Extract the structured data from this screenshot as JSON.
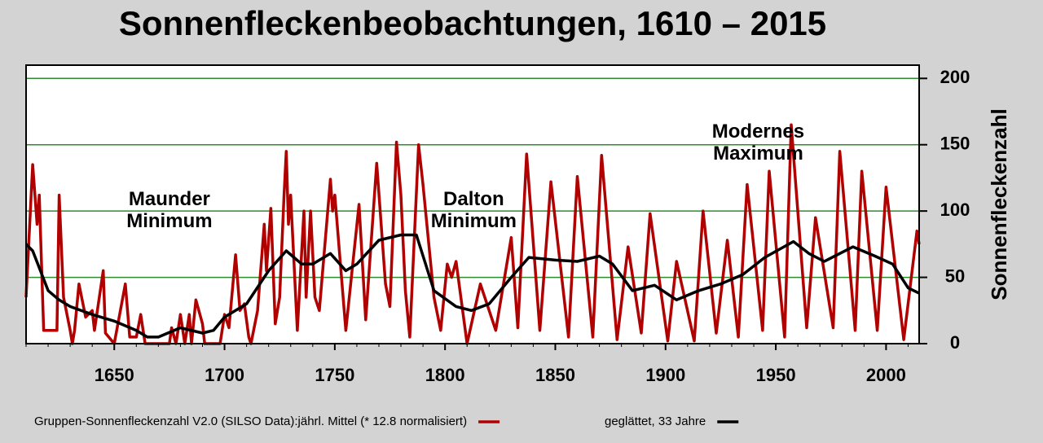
{
  "chart_data": {
    "type": "line",
    "title": "Sonnenfleckenbeobachtungen, 1610 – 2015",
    "y_label": "Sonnenfleckenzahl",
    "xlim": [
      1610,
      2015
    ],
    "ylim": [
      0,
      210
    ],
    "xticks": [
      1650,
      1700,
      1750,
      1800,
      1850,
      1900,
      1950,
      2000
    ],
    "yticks": [
      0,
      50,
      100,
      150,
      200
    ],
    "grid": true,
    "grid_color": "#2e8b2e",
    "annotations": [
      {
        "lines": [
          "Maunder",
          "Minimum"
        ],
        "x": 1675,
        "y": 100
      },
      {
        "lines": [
          "Dalton",
          "Minimum"
        ],
        "x": 1813,
        "y": 100
      },
      {
        "lines": [
          "Modernes",
          "Maximum"
        ],
        "x": 1942,
        "y": 151
      }
    ],
    "series": [
      {
        "name": "Gruppen-Sonnenfleckenzahl V2.0 (SILSO Data):jährl. Mittel (* 12.8 normalisiert)",
        "color": "#b00000",
        "x": [
          1610,
          1613,
          1615,
          1616,
          1618,
          1624,
          1625,
          1627,
          1630,
          1631,
          1632,
          1634,
          1637,
          1640,
          1641,
          1645,
          1646,
          1650,
          1655,
          1657,
          1660,
          1662,
          1664,
          1675,
          1676,
          1678,
          1680,
          1682,
          1684,
          1685,
          1687,
          1690,
          1691,
          1698,
          1700,
          1702,
          1705,
          1707,
          1709,
          1711,
          1712,
          1715,
          1718,
          1719,
          1721,
          1723,
          1725,
          1727,
          1728,
          1729,
          1730,
          1733,
          1736,
          1737,
          1739,
          1741,
          1743,
          1748,
          1749,
          1750,
          1755,
          1761,
          1764,
          1769,
          1773,
          1775,
          1778,
          1780,
          1782,
          1784,
          1788,
          1790,
          1795,
          1798,
          1801,
          1803,
          1805,
          1810,
          1816,
          1820,
          1823,
          1830,
          1833,
          1837,
          1843,
          1848,
          1856,
          1860,
          1867,
          1871,
          1878,
          1883,
          1889,
          1893,
          1901,
          1905,
          1913,
          1917,
          1923,
          1928,
          1933,
          1937,
          1944,
          1947,
          1954,
          1957,
          1964,
          1968,
          1976,
          1979,
          1986,
          1989,
          1996,
          2000,
          2008,
          2014,
          2015
        ],
        "values": [
          35,
          135,
          90,
          112,
          10,
          10,
          112,
          35,
          10,
          0,
          10,
          45,
          20,
          25,
          10,
          55,
          8,
          0,
          45,
          5,
          5,
          22,
          0,
          0,
          12,
          0,
          22,
          0,
          22,
          0,
          33,
          15,
          0,
          0,
          22,
          12,
          67,
          25,
          30,
          5,
          0,
          25,
          90,
          55,
          102,
          15,
          35,
          112,
          145,
          90,
          112,
          10,
          100,
          35,
          100,
          35,
          25,
          124,
          100,
          112,
          10,
          105,
          18,
          136,
          45,
          28,
          152,
          112,
          40,
          5,
          150,
          120,
          35,
          10,
          60,
          50,
          62,
          0,
          45,
          25,
          10,
          80,
          12,
          143,
          10,
          122,
          5,
          126,
          5,
          142,
          3,
          73,
          8,
          98,
          2,
          62,
          2,
          100,
          8,
          78,
          5,
          120,
          10,
          130,
          5,
          165,
          12,
          95,
          12,
          145,
          10,
          130,
          10,
          118,
          3,
          85,
          75
        ]
      },
      {
        "name": "geglättet, 33 Jahre",
        "color": "#000000",
        "x": [
          1610,
          1613,
          1620,
          1625,
          1630,
          1640,
          1650,
          1660,
          1665,
          1670,
          1680,
          1690,
          1695,
          1700,
          1710,
          1720,
          1728,
          1735,
          1740,
          1748,
          1755,
          1760,
          1770,
          1780,
          1787,
          1795,
          1805,
          1812,
          1820,
          1830,
          1838,
          1850,
          1860,
          1870,
          1876,
          1885,
          1895,
          1905,
          1915,
          1925,
          1935,
          1945,
          1958,
          1965,
          1972,
          1985,
          1995,
          2003,
          2010,
          2015
        ],
        "values": [
          75,
          70,
          40,
          33,
          28,
          22,
          17,
          10,
          5,
          5,
          12,
          8,
          10,
          20,
          30,
          55,
          70,
          60,
          60,
          68,
          55,
          60,
          78,
          82,
          82,
          40,
          28,
          25,
          30,
          50,
          65,
          63,
          62,
          66,
          60,
          40,
          44,
          33,
          40,
          45,
          52,
          65,
          77,
          68,
          62,
          73,
          66,
          60,
          42,
          38
        ]
      }
    ]
  }
}
